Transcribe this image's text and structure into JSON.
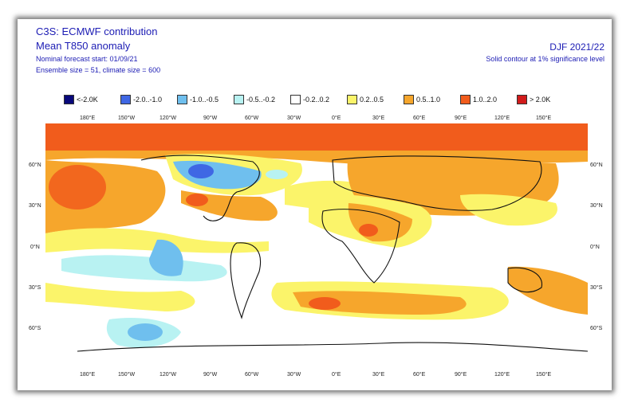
{
  "header": {
    "org": "C3S: ECMWF contribution",
    "title": "Mean T850 anomaly",
    "forecast_start": "Nominal forecast start: 01/09/21",
    "ensemble": "Ensemble size = 51, climate size = 600",
    "season": "DJF 2021/22",
    "significance": "Solid contour at 1% significance level"
  },
  "legend": [
    {
      "label": "<-2.0K",
      "color": "#08087a"
    },
    {
      "label": "-2.0..-1.0",
      "color": "#3f67e4"
    },
    {
      "label": "-1.0..-0.5",
      "color": "#6fbfee"
    },
    {
      "label": "-0.5..-0.2",
      "color": "#b8f2f2"
    },
    {
      "label": "-0.2..0.2",
      "color": "#ffffff"
    },
    {
      "label": "0.2..0.5",
      "color": "#fbf46a"
    },
    {
      "label": "0.5..1.0",
      "color": "#f6a62c"
    },
    {
      "label": "1.0..2.0",
      "color": "#f15c1c"
    },
    {
      "label": "> 2.0K",
      "color": "#d11b1b"
    }
  ],
  "axes": {
    "lon_labels": [
      "180°E",
      "150°W",
      "120°W",
      "90°W",
      "60°W",
      "30°W",
      "0°E",
      "30°E",
      "60°E",
      "90°E",
      "120°E",
      "150°E"
    ],
    "lat_labels": [
      "60°N",
      "30°N",
      "0°N",
      "30°S",
      "60°S"
    ]
  }
}
